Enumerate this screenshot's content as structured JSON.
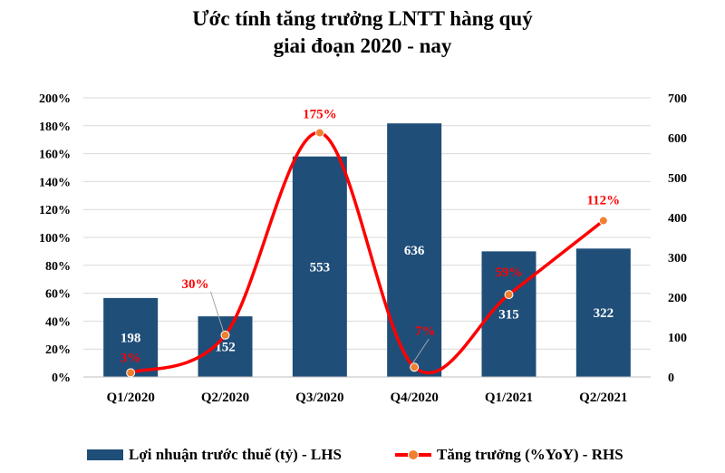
{
  "title_lines": [
    "Ước tính tăng trưởng LNTT hàng quý",
    "giai đoạn 2020 - nay"
  ],
  "colors": {
    "bar": "#1f4e79",
    "line": "#ff0000",
    "marker": "#f08030",
    "line_label": "#ff0000",
    "bar_label": "#ffffff",
    "grid": "#d9d9d9"
  },
  "legend": {
    "bar_label": "Lợi nhuận trước thuế (tỷ) - LHS",
    "line_label": "Tăng trưởng (%YoY) - RHS"
  },
  "chart_data": {
    "type": "bar",
    "title": "Ước tính tăng trưởng LNTT hàng quý giai đoạn 2020 - nay",
    "categories": [
      "Q1/2020",
      "Q2/2020",
      "Q3/2020",
      "Q4/2020",
      "Q1/2021",
      "Q2/2021"
    ],
    "series": [
      {
        "name": "Lợi nhuận trước thuế (tỷ) - LHS",
        "type": "bar",
        "axis": "right",
        "values": [
          198,
          152,
          553,
          636,
          315,
          322
        ],
        "labels": [
          "198",
          "152",
          "553",
          "636",
          "315",
          "322"
        ]
      },
      {
        "name": "Tăng trưởng (%YoY) - RHS",
        "type": "line",
        "axis": "left",
        "smooth": true,
        "values": [
          3,
          30,
          175,
          7,
          59,
          112
        ],
        "labels": [
          "3%",
          "30%",
          "175%",
          "7%",
          "59%",
          "112%"
        ]
      }
    ],
    "y_left": {
      "ticks": [
        "0%",
        "20%",
        "40%",
        "60%",
        "80%",
        "100%",
        "120%",
        "140%",
        "160%",
        "180%",
        "200%"
      ],
      "range": [
        0,
        200
      ]
    },
    "y_right": {
      "ticks": [
        "0",
        "100",
        "200",
        "300",
        "400",
        "500",
        "600",
        "700"
      ],
      "range": [
        0,
        700
      ]
    },
    "grid": true,
    "legend_position": "bottom"
  }
}
